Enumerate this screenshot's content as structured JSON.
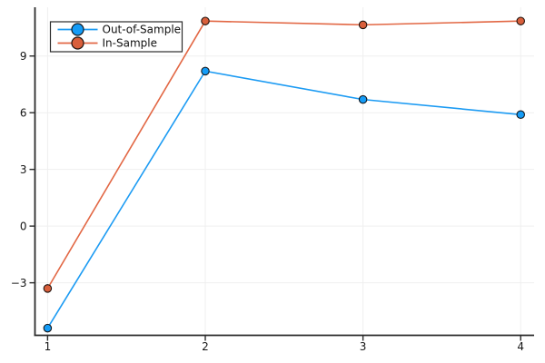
{
  "figure": {
    "background": "#FFFFFF",
    "title": ""
  },
  "chart_data": {
    "type": "line",
    "title": "",
    "xlabel": "",
    "ylabel": "",
    "x": [
      1,
      2,
      3,
      4
    ],
    "series": [
      {
        "name": "Out-of-Sample",
        "values": [
          -5.4,
          8.2,
          6.7,
          5.9
        ],
        "line_color": "#1C9BF3",
        "marker_color": "#149CF7",
        "marker_outline": "#14191f"
      },
      {
        "name": "In-Sample",
        "values": [
          -3.3,
          10.85,
          10.65,
          10.85
        ],
        "line_color": "#E26744",
        "marker_color": "#D95F3B",
        "marker_outline": "#1f130e"
      }
    ],
    "xticks": {
      "values": [
        1,
        2,
        3,
        4
      ],
      "labels": [
        "1",
        "2",
        "3",
        "4"
      ]
    },
    "yticks": {
      "values": [
        -3,
        0,
        3,
        6,
        9
      ],
      "labels": [
        "−3",
        "0",
        "3",
        "6",
        "9"
      ]
    },
    "xlim": [
      0.92,
      4.085
    ],
    "ylim": [
      -5.78,
      11.58
    ],
    "grid": true,
    "legend": {
      "position": "top-left",
      "border_color": "#2B2B2B",
      "background": "#FFFFFF",
      "text_color": "#111111"
    }
  },
  "style": {
    "axis_color": "#2B2B2B",
    "grid_color": "#EFEFEF",
    "tick_label_color": "#151515"
  }
}
